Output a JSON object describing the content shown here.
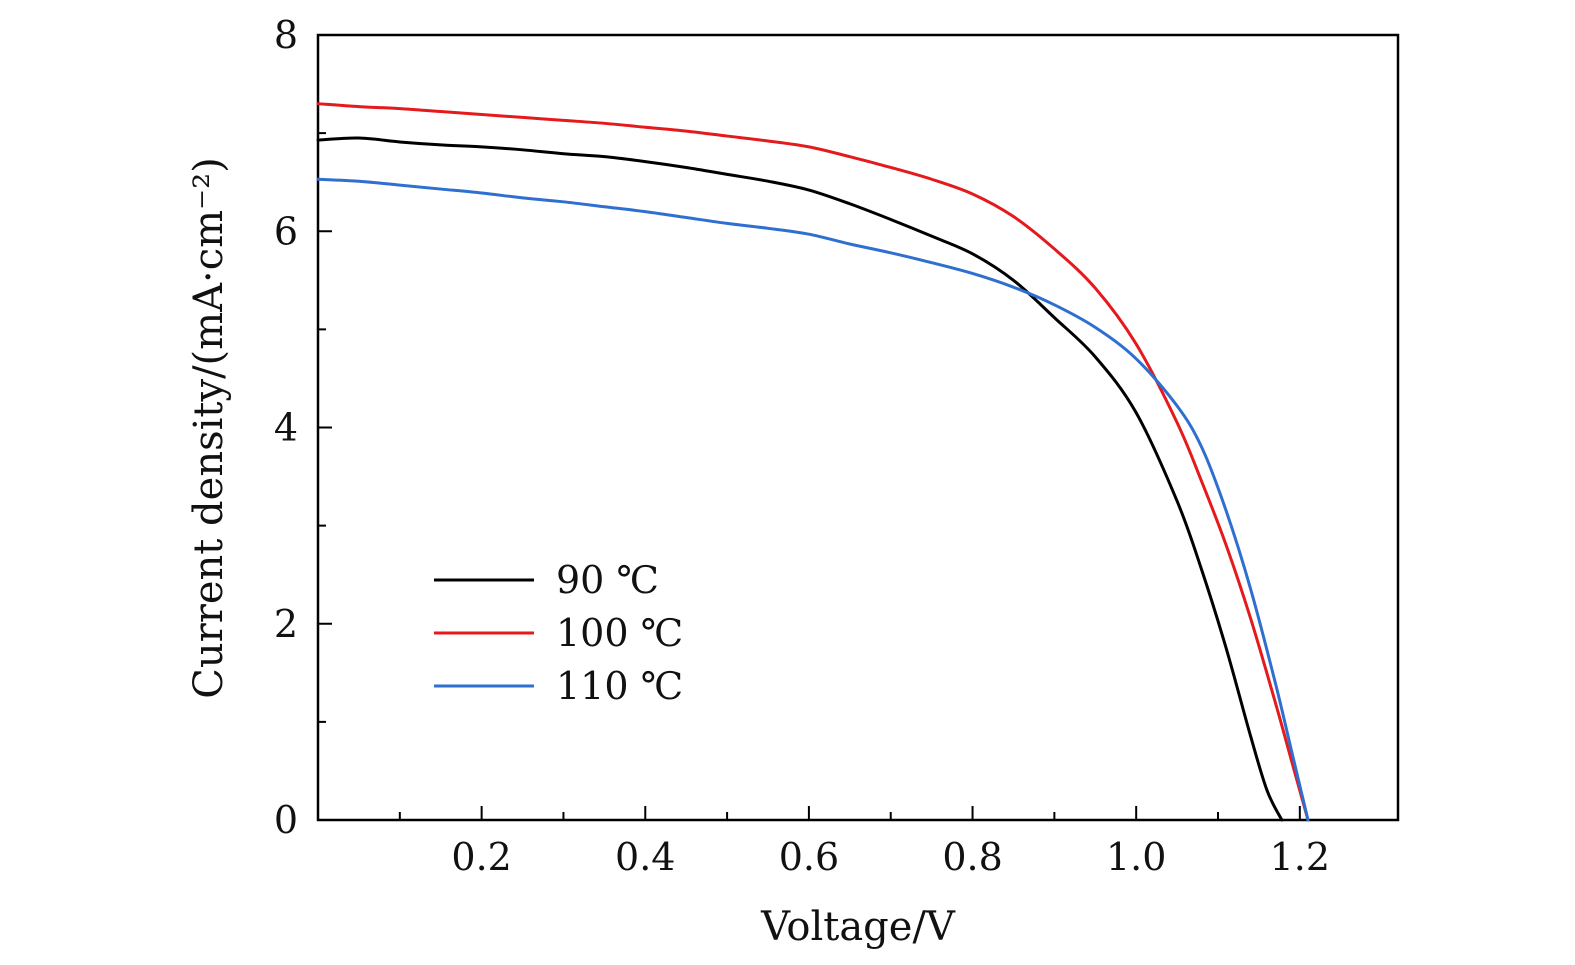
{
  "chart_data": {
    "type": "line",
    "title": "",
    "xlabel": "Voltage/V",
    "ylabel": "Current density/(mA·cm⁻²)",
    "xlim": [
      0.0,
      1.32
    ],
    "ylim": [
      0,
      8
    ],
    "x_ticks": [
      0.2,
      0.4,
      0.6,
      0.8,
      1.0,
      1.2
    ],
    "x_tick_labels": [
      "0.2",
      "0.4",
      "0.6",
      "0.8",
      "1.0",
      "1.2"
    ],
    "x_minor_ticks": [
      0.1,
      0.3,
      0.5,
      0.7,
      0.9,
      1.1
    ],
    "y_ticks": [
      0,
      2,
      4,
      6,
      8
    ],
    "y_tick_labels": [
      "0",
      "2",
      "4",
      "6",
      "8"
    ],
    "y_minor_ticks": [
      1,
      3,
      5,
      7
    ],
    "grid": false,
    "legend_position": "bottom-left",
    "series": [
      {
        "name": "90 ℃",
        "color": "#000000",
        "x": [
          0.0,
          0.05,
          0.1,
          0.15,
          0.2,
          0.25,
          0.3,
          0.35,
          0.4,
          0.45,
          0.5,
          0.55,
          0.6,
          0.65,
          0.7,
          0.75,
          0.8,
          0.85,
          0.9,
          0.95,
          1.0,
          1.05,
          1.08,
          1.11,
          1.14,
          1.16,
          1.178
        ],
        "y": [
          6.93,
          6.95,
          6.91,
          6.88,
          6.86,
          6.83,
          6.79,
          6.76,
          6.71,
          6.65,
          6.58,
          6.51,
          6.42,
          6.28,
          6.12,
          5.95,
          5.77,
          5.5,
          5.12,
          4.72,
          4.15,
          3.25,
          2.55,
          1.75,
          0.85,
          0.3,
          0.0
        ]
      },
      {
        "name": "100 ℃",
        "color": "#e41a1c",
        "x": [
          0.0,
          0.05,
          0.1,
          0.15,
          0.2,
          0.25,
          0.3,
          0.35,
          0.4,
          0.45,
          0.5,
          0.55,
          0.6,
          0.65,
          0.7,
          0.75,
          0.8,
          0.85,
          0.9,
          0.95,
          1.0,
          1.05,
          1.08,
          1.11,
          1.14,
          1.17,
          1.19,
          1.21
        ],
        "y": [
          7.3,
          7.27,
          7.25,
          7.22,
          7.19,
          7.16,
          7.13,
          7.1,
          7.06,
          7.02,
          6.97,
          6.92,
          6.86,
          6.76,
          6.65,
          6.53,
          6.38,
          6.15,
          5.82,
          5.42,
          4.85,
          4.05,
          3.45,
          2.8,
          2.05,
          1.2,
          0.6,
          0.0
        ]
      },
      {
        "name": "110 ℃",
        "color": "#2f6fd0",
        "x": [
          0.0,
          0.05,
          0.1,
          0.15,
          0.2,
          0.25,
          0.3,
          0.35,
          0.4,
          0.45,
          0.5,
          0.55,
          0.6,
          0.65,
          0.7,
          0.75,
          0.8,
          0.85,
          0.9,
          0.95,
          1.0,
          1.05,
          1.08,
          1.11,
          1.14,
          1.17,
          1.19,
          1.21
        ],
        "y": [
          6.53,
          6.51,
          6.47,
          6.43,
          6.39,
          6.34,
          6.3,
          6.25,
          6.2,
          6.14,
          6.08,
          6.03,
          5.97,
          5.87,
          5.78,
          5.68,
          5.57,
          5.43,
          5.25,
          5.02,
          4.7,
          4.22,
          3.8,
          3.15,
          2.35,
          1.4,
          0.7,
          0.0
        ]
      }
    ]
  }
}
